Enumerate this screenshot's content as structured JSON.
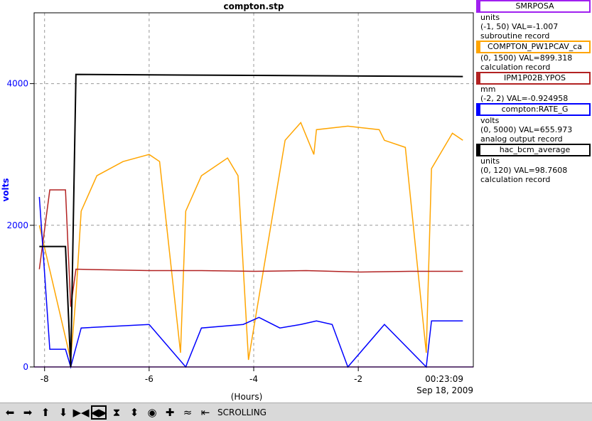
{
  "chart_data": {
    "type": "line",
    "title": "compton.stp",
    "xlabel": "(Hours)",
    "ylabel": "volts",
    "xlim": [
      -8.2,
      0.2
    ],
    "ylim": [
      0,
      5000
    ],
    "xticks": [
      "-8",
      "-6",
      "-4",
      "-2"
    ],
    "yticks": [
      "0",
      "2000",
      "4000"
    ],
    "time_label": "00:23:09",
    "date_label": "Sep 18, 2009",
    "series": [
      {
        "name": "SMRPOSA",
        "color": "#a020f0",
        "units": "units",
        "range": "(-1, 50)",
        "val": "VAL=-1.007",
        "rtype": "subroutine record",
        "x": [
          -8.2,
          0.2
        ],
        "y": [
          0,
          0
        ]
      },
      {
        "name": "COMPTON_PW1PCAV_ca",
        "color": "#ffa500",
        "units": "",
        "range": "(0, 1500)",
        "val": "VAL=899.318",
        "rtype": "calculation record",
        "x": [
          -8.1,
          -7.5,
          -7.4,
          -7.3,
          -7.0,
          -6.5,
          -6.0,
          -5.8,
          -5.4,
          -5.3,
          -5.0,
          -4.5,
          -4.3,
          -4.1,
          -3.4,
          -3.1,
          -2.85,
          -2.8,
          -2.2,
          -1.6,
          -1.5,
          -1.1,
          -0.7,
          -0.6,
          -0.2,
          0.0
        ],
        "y": [
          2000,
          100,
          1000,
          2200,
          2700,
          2900,
          3000,
          2900,
          200,
          2200,
          2700,
          2950,
          2700,
          100,
          3200,
          3450,
          3000,
          3350,
          3400,
          3350,
          3200,
          3100,
          200,
          2800,
          3300,
          3200
        ]
      },
      {
        "name": "IPM1P02B.YPOS",
        "color": "#b22222",
        "units": "mm",
        "range": "(-2, 2)",
        "val": "VAL=-0.924958",
        "rtype": "",
        "x": [
          -8.1,
          -7.9,
          -7.6,
          -7.5,
          -7.4,
          -6.0,
          -5.0,
          -4.0,
          -3.0,
          -2.0,
          -1.0,
          0.0
        ],
        "y": [
          1380,
          2500,
          2500,
          850,
          1380,
          1360,
          1360,
          1350,
          1360,
          1340,
          1350,
          1350
        ]
      },
      {
        "name": "compton:RATE_G",
        "color": "#0000ff",
        "units": "volts",
        "range": "(0, 5000)",
        "val": "VAL=655.973",
        "rtype": "analog output record",
        "x": [
          -8.1,
          -7.9,
          -7.6,
          -7.5,
          -7.3,
          -6.0,
          -5.3,
          -5.0,
          -4.2,
          -3.9,
          -3.5,
          -3.1,
          -2.8,
          -2.5,
          -2.2,
          -1.5,
          -0.7,
          -0.6,
          0.0
        ],
        "y": [
          2400,
          250,
          250,
          0,
          550,
          600,
          0,
          550,
          600,
          700,
          550,
          600,
          650,
          600,
          0,
          600,
          0,
          650,
          650
        ]
      },
      {
        "name": "hac_bcm_average",
        "color": "#000000",
        "units": "units",
        "range": "(0, 120)",
        "val": "VAL=98.7608",
        "rtype": "calculation record",
        "x": [
          -8.1,
          -7.9,
          -7.6,
          -7.5,
          -7.4,
          0.0
        ],
        "y": [
          1700,
          1700,
          1700,
          0,
          4130,
          4100
        ]
      }
    ]
  },
  "toolbar": {
    "scrolling_label": "SCROLLING",
    "buttons": [
      "arrow-left-icon",
      "arrow-right-icon",
      "arrow-up-icon",
      "arrow-down-icon",
      "zoom-x-in-icon",
      "zoom-x-out-icon",
      "zoom-y-in-icon",
      "zoom-y-out-icon",
      "record-icon",
      "add-icon",
      "autoscale-icon",
      "export-icon"
    ]
  }
}
